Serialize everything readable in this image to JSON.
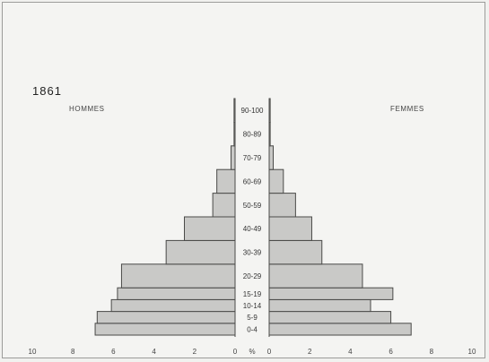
{
  "chart_data": {
    "type": "bar",
    "title": "1861",
    "left_label": "HOMMES",
    "right_label": "FEMMES",
    "unit_label": "%",
    "categories": [
      "0-4",
      "5-9",
      "10-14",
      "15-19",
      "20-29",
      "30-39",
      "40-49",
      "50-59",
      "60-69",
      "70-79",
      "80-89",
      "90-100"
    ],
    "series": [
      {
        "name": "HOMMES",
        "values": [
          6.9,
          6.8,
          6.1,
          5.8,
          5.6,
          3.4,
          2.5,
          1.1,
          0.9,
          0.2,
          0.05,
          0.05
        ]
      },
      {
        "name": "FEMMES",
        "values": [
          7.0,
          6.0,
          5.0,
          6.1,
          4.6,
          2.6,
          2.1,
          1.3,
          0.7,
          0.2,
          0.05,
          0.05
        ]
      }
    ],
    "xlim": [
      0,
      10
    ],
    "xticks": [
      "10",
      "8",
      "6",
      "4",
      "2",
      "0",
      "0",
      "2",
      "4",
      "6",
      "8",
      "10"
    ],
    "grid": false,
    "colors": {
      "bar_fill": "#c9c9c7",
      "bar_stroke": "#4a4a48"
    }
  }
}
